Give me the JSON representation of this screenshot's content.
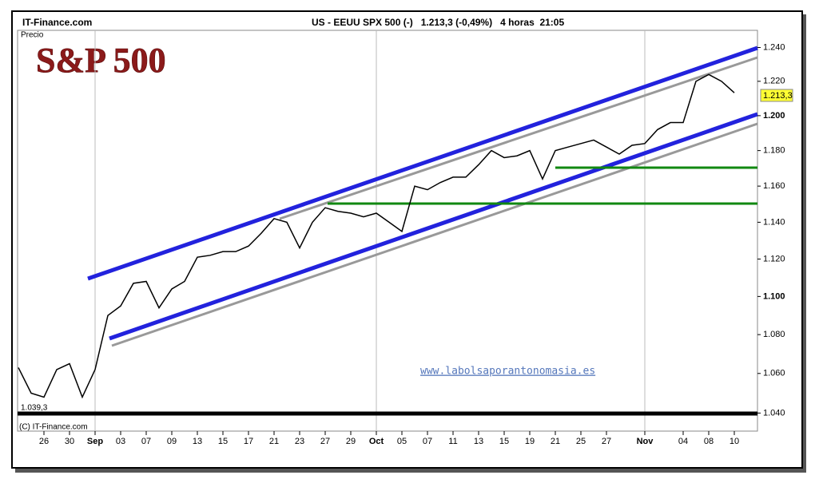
{
  "header": {
    "site": "IT-Finance.com",
    "instrument": "US - EEUU SPX 500 (-)   1.213,3 (-0,49%)   4 horas  21:05"
  },
  "chart_data": {
    "type": "line",
    "title": "S&P 500",
    "y_label": "Precio",
    "watermark": "www.labolsaporantonomasia.es",
    "copyright": "(C) IT-Finance.com",
    "min_label": "1.039,3",
    "last_label": "1.213,3",
    "color": "#000000",
    "log_scale": true,
    "categories": [
      null,
      null,
      "26",
      null,
      "30",
      null,
      "Sep",
      null,
      "03",
      null,
      "07",
      null,
      "09",
      null,
      "13",
      null,
      "15",
      null,
      "17",
      null,
      "21",
      null,
      "23",
      null,
      "27",
      null,
      "29",
      null,
      "Oct",
      null,
      "05",
      null,
      "07",
      null,
      "11",
      null,
      "13",
      null,
      "15",
      null,
      "19",
      null,
      "21",
      null,
      "25",
      null,
      "27",
      null,
      null,
      "Nov",
      null,
      null,
      "04",
      null,
      "08",
      null,
      "10"
    ],
    "values": [
      1063,
      1050,
      1048,
      1062,
      1065,
      1048,
      1062,
      1090,
      1095,
      1107,
      1108,
      1094,
      1104,
      1108,
      1121,
      1122,
      1124,
      1124,
      1127,
      1134,
      1142,
      1140,
      1126,
      1140,
      1148,
      1146,
      1145,
      1143,
      1145,
      1140,
      1135,
      1160,
      1158,
      1162,
      1165,
      1165,
      1172,
      1180,
      1176,
      1177,
      1180,
      1164,
      1180,
      1182,
      1184,
      1186,
      1182,
      1178,
      1183,
      1184,
      1192,
      1196,
      1196,
      1220,
      1224,
      1220,
      1213.3
    ],
    "ylim": [
      1031,
      1258
    ],
    "yticks": [
      {
        "value": 1040,
        "label": "1.040"
      },
      {
        "value": 1060,
        "label": "1.060"
      },
      {
        "value": 1080,
        "label": "1.080"
      },
      {
        "value": 1100,
        "label": "1.100"
      },
      {
        "value": 1120,
        "label": "1.120"
      },
      {
        "value": 1140,
        "label": "1.140"
      },
      {
        "value": 1160,
        "label": "1.160"
      },
      {
        "value": 1180,
        "label": "1.180"
      },
      {
        "value": 1200,
        "label": "1.200"
      },
      {
        "value": 1220,
        "label": "1.220"
      },
      {
        "value": 1240,
        "label": "1.240"
      }
    ]
  }
}
